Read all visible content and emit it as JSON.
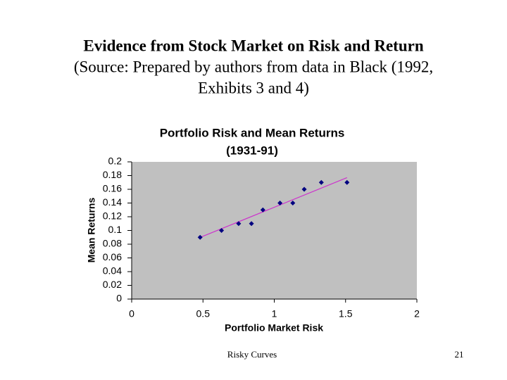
{
  "slide": {
    "title_lines": [
      "Evidence from Stock Market on Risk and Return",
      "(Source: Prepared by authors from data in Black (1992,",
      "Exhibits 3 and 4)"
    ],
    "footer": "Risky Curves",
    "page_number": "21"
  },
  "chart_data": {
    "type": "scatter",
    "title": "Portfolio Risk and Mean Returns",
    "subtitle": "(1931-91)",
    "x_label": "Portfolio Market Risk",
    "y_label": "Mean Returns",
    "x": [
      0.48,
      0.63,
      0.75,
      0.84,
      0.92,
      1.04,
      1.13,
      1.21,
      1.33,
      1.51
    ],
    "values": [
      0.09,
      0.1,
      0.11,
      0.11,
      0.13,
      0.14,
      0.14,
      0.16,
      0.17,
      0.17
    ],
    "color": "#000080",
    "trendline": {
      "x": [
        0.47,
        1.51
      ],
      "y": [
        0.089,
        0.177
      ],
      "color": "#cc33cc"
    },
    "xlim": [
      0,
      2
    ],
    "xticks": [
      0,
      0.5,
      1,
      1.5,
      2
    ],
    "ylim": [
      0,
      0.2
    ],
    "yticks": [
      0,
      0.02,
      0.04,
      0.06,
      0.08,
      0.1,
      0.12,
      0.14,
      0.16,
      0.18,
      0.2
    ],
    "plot_background": "#c0c0c0",
    "grid": false
  }
}
